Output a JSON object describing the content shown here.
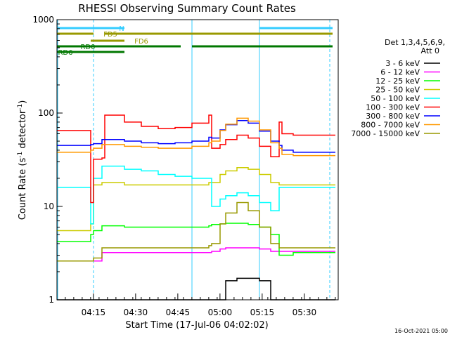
{
  "chart_data": {
    "type": "line",
    "title": "RHESSI Observing Summary Count Rates",
    "xlabel": "Start Time (17-Jul-06 04:02:02)",
    "ylabel_main": "Count Rate (s",
    "ylabel_sup1": "-1",
    "ylabel_mid": " detector",
    "ylabel_sup2": "-1",
    "ylabel_end": ")",
    "yscale": "log",
    "ylim": [
      1,
      1000
    ],
    "xlim": [
      "04:02:02",
      "05:42:00"
    ],
    "x_ticks": [
      "04:15",
      "04:30",
      "04:45",
      "05:00",
      "05:15",
      "05:30"
    ],
    "y_ticks": [
      "1",
      "10",
      "100",
      "1000"
    ],
    "grid": false,
    "legend_title_1": "Det 1,3,4,5,6,9,",
    "legend_title_2": "Att 0",
    "legend_position": "right",
    "timestamp": "16-Oct-2021 05:00",
    "x_minutes": [
      0,
      4,
      5,
      12,
      13,
      16,
      17,
      24,
      30,
      36,
      42,
      48,
      54,
      55,
      58,
      60,
      64,
      68,
      72,
      76,
      79,
      80,
      84,
      88,
      92,
      96,
      98
    ],
    "series": [
      {
        "name": "3 - 6 keV",
        "color": "#000000",
        "values": [
          1,
          1,
          1,
          1,
          1,
          1,
          1,
          1,
          1,
          1,
          1,
          1,
          1,
          1,
          1,
          1.6,
          1.7,
          1.7,
          1.6,
          1,
          1,
          1,
          1,
          1,
          1,
          1,
          1
        ]
      },
      {
        "name": "6 - 12 keV",
        "color": "#ff00ff",
        "values": [
          2.6,
          2.6,
          2.6,
          2.6,
          2.6,
          3.2,
          3.2,
          3.2,
          3.2,
          3.2,
          3.2,
          3.2,
          3.2,
          3.3,
          3.5,
          3.6,
          3.6,
          3.6,
          3.5,
          3.3,
          3.3,
          3.3,
          3.3,
          3.3,
          3.3,
          3.3,
          3.3
        ]
      },
      {
        "name": "12 - 25 keV",
        "color": "#00ff00",
        "values": [
          4.2,
          4.2,
          4.2,
          5.0,
          5.5,
          6.2,
          6.2,
          6.0,
          6.0,
          6.0,
          6.0,
          6.0,
          6.2,
          6.4,
          6.5,
          6.6,
          6.6,
          6.4,
          6.0,
          5.0,
          3.0,
          3.0,
          3.2,
          3.2,
          3.2,
          3.2,
          3.2
        ]
      },
      {
        "name": "25 - 50 keV",
        "color": "#cccc00",
        "values": [
          5.5,
          5.5,
          5.5,
          6.5,
          17,
          18,
          18,
          17,
          17,
          17,
          17,
          17,
          18,
          18,
          22,
          24,
          26,
          25,
          22,
          18,
          17,
          17,
          17,
          17,
          17,
          17,
          17
        ]
      },
      {
        "name": "50 - 100 keV",
        "color": "#00ffff",
        "values": [
          16,
          16,
          16,
          6.5,
          20,
          27,
          27,
          25,
          24,
          22,
          21,
          20,
          20,
          10,
          12,
          13,
          14,
          13,
          11,
          9,
          16,
          16,
          16,
          16,
          16,
          16,
          16
        ]
      },
      {
        "name": "100 - 300 keV",
        "color": "#ff0000",
        "values": [
          65,
          65,
          65,
          11,
          32,
          33,
          95,
          80,
          72,
          68,
          70,
          78,
          95,
          42,
          46,
          52,
          58,
          54,
          44,
          34,
          80,
          60,
          58,
          58,
          58,
          58,
          58
        ]
      },
      {
        "name": "300 - 800 keV",
        "color": "#0000ff",
        "values": [
          45,
          45,
          45,
          46,
          47,
          52,
          52,
          50,
          48,
          47,
          48,
          50,
          55,
          54,
          66,
          75,
          83,
          78,
          64,
          50,
          45,
          40,
          38,
          38,
          38,
          38,
          38
        ]
      },
      {
        "name": "800 - 7000 keV",
        "color": "#ff9900",
        "values": [
          38,
          38,
          38,
          40,
          42,
          46,
          46,
          44,
          43,
          42,
          42,
          44,
          48,
          50,
          65,
          76,
          88,
          82,
          66,
          48,
          42,
          36,
          35,
          35,
          35,
          35,
          35
        ]
      },
      {
        "name": "7000 - 15000 keV",
        "color": "#999900",
        "values": [
          2.6,
          2.6,
          2.6,
          2.6,
          2.8,
          3.6,
          3.6,
          3.6,
          3.6,
          3.6,
          3.6,
          3.6,
          3.8,
          4.0,
          6.5,
          8.5,
          11,
          9,
          6,
          4.0,
          3.6,
          3.6,
          3.6,
          3.6,
          3.6,
          3.6,
          3.6
        ]
      }
    ],
    "state_bars": [
      {
        "label": "N",
        "color": "#33ccff",
        "segments": [
          [
            0,
            24
          ],
          [
            72,
            98
          ]
        ]
      },
      {
        "label": "FD5",
        "color": "#999900",
        "segments": [
          [
            0,
            13
          ],
          [
            17,
            98
          ]
        ]
      },
      {
        "label": "FD6",
        "color": "#999900",
        "segments": [
          [
            12,
            24
          ]
        ]
      },
      {
        "label": "RD0",
        "color": "#007700",
        "segments": [
          [
            0,
            44
          ],
          [
            48,
            72
          ],
          [
            72,
            98
          ]
        ]
      },
      {
        "label": "RD6",
        "color": "#007700",
        "segments": [
          [
            0,
            13
          ],
          [
            13,
            24
          ]
        ]
      }
    ],
    "vlines_solid_minutes": [
      -0.01,
      48,
      72
    ],
    "vlines_dashed_minutes": [
      13,
      97
    ]
  }
}
